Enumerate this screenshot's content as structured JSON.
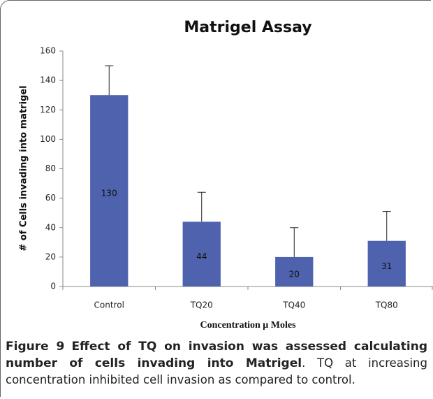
{
  "chart_data": {
    "type": "bar",
    "title": "Matrigel Assay",
    "xlabel": "Concentration μ Moles",
    "ylabel": "# of Cells invading into matrigel",
    "categories": [
      "Control",
      "TQ20",
      "TQ40",
      "TQ80"
    ],
    "values": [
      130,
      44,
      20,
      31
    ],
    "errors": [
      20,
      20,
      20,
      20
    ],
    "color": "#4f62ad",
    "ylim": [
      0,
      160
    ],
    "yticks": [
      0,
      20,
      40,
      60,
      80,
      100,
      120,
      140,
      160
    ],
    "grid": false
  },
  "caption": {
    "label": "Figure 9",
    "title": "Effect of TQ on invasion was assessed calculating number of cells invading into Matrigel",
    "text": ". TQ at increasing concentration inhibited cell invasion as compared to control."
  }
}
